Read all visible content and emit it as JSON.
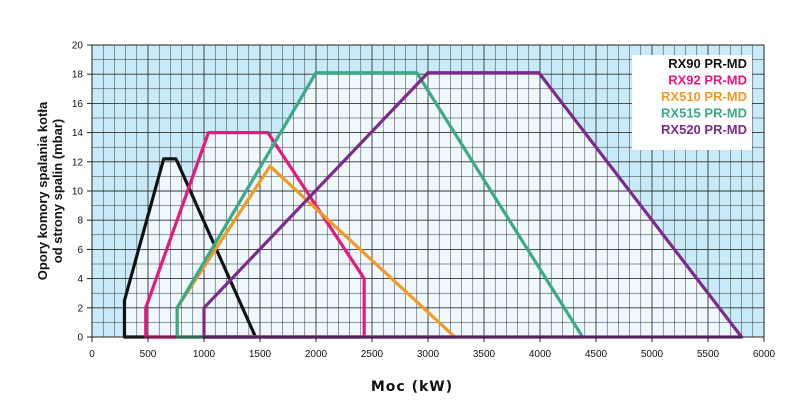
{
  "chart_data": {
    "type": "area",
    "title": "",
    "xlabel": "Moc (kW)",
    "ylabel": [
      "Opory komory spalania kotła",
      "od strony spalin (mbar)"
    ],
    "xlim": [
      0,
      6000
    ],
    "ylim": [
      0,
      20
    ],
    "xticks": [
      0,
      500,
      1000,
      1500,
      2000,
      2500,
      3000,
      3500,
      4000,
      4500,
      5000,
      5500,
      6000
    ],
    "yticks": [
      0,
      2,
      4,
      6,
      8,
      10,
      12,
      14,
      16,
      18,
      20
    ],
    "grid": true,
    "legend_position": "top-right",
    "series": [
      {
        "name": "RX90 PR-MD",
        "color": "#111111",
        "points": [
          [
            290,
            0
          ],
          [
            290,
            2.5
          ],
          [
            640,
            12.2
          ],
          [
            750,
            12.2
          ],
          [
            1460,
            0
          ],
          [
            290,
            0
          ]
        ]
      },
      {
        "name": "RX92 PR-MD",
        "color": "#e8177f",
        "points": [
          [
            480,
            0
          ],
          [
            480,
            2
          ],
          [
            1040,
            14
          ],
          [
            1570,
            14
          ],
          [
            2430,
            4
          ],
          [
            2430,
            0
          ],
          [
            480,
            0
          ]
        ]
      },
      {
        "name": "RX510 PR-MD",
        "color": "#f29a24",
        "points": [
          [
            760,
            0
          ],
          [
            760,
            2
          ],
          [
            1590,
            11.7
          ],
          [
            3240,
            0
          ],
          [
            760,
            0
          ]
        ]
      },
      {
        "name": "RX515 PR-MD",
        "color": "#3aaa86",
        "points": [
          [
            760,
            0
          ],
          [
            760,
            2
          ],
          [
            2000,
            18.1
          ],
          [
            2900,
            18.1
          ],
          [
            4380,
            0
          ],
          [
            760,
            0
          ]
        ]
      },
      {
        "name": "RX520 PR-MD",
        "color": "#7d2a8f",
        "points": [
          [
            1000,
            0
          ],
          [
            1000,
            2
          ],
          [
            3000,
            18.1
          ],
          [
            3990,
            18.1
          ],
          [
            5800,
            0
          ],
          [
            1000,
            0
          ]
        ]
      }
    ],
    "colors": {
      "background_outer": "#c9ebf9",
      "background_inner": "#eef8fd",
      "grid": "#333333"
    }
  }
}
